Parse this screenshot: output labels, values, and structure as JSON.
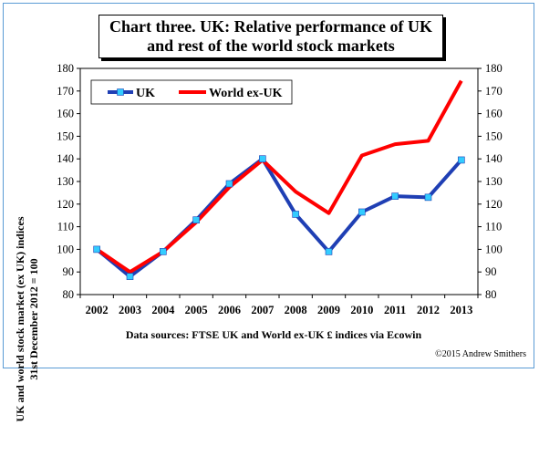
{
  "chart_data": {
    "type": "line",
    "title_line1": "Chart three. UK: Relative performance of UK",
    "title_line2": "and rest of the world stock markets",
    "ylabel_line1": "UK and world stock market (ex UK) indices",
    "ylabel_line2": "31st December 2012 = 100",
    "source": "Data sources: FTSE UK and World ex-UK £ indices via Ecowin",
    "copyright": "©2015 Andrew Smithers",
    "categories": [
      "2002",
      "2003",
      "2004",
      "2005",
      "2006",
      "2007",
      "2008",
      "2009",
      "2010",
      "2011",
      "2012",
      "2013"
    ],
    "ylim": [
      80,
      180
    ],
    "yticks": [
      80,
      90,
      100,
      110,
      120,
      130,
      140,
      150,
      160,
      170,
      180
    ],
    "legend_position": "top-left",
    "grid": false,
    "series": [
      {
        "name": "UK",
        "color": "#1f3fb4",
        "marker_color": "#33ccff",
        "values": [
          100,
          88,
          99,
          113,
          129,
          140,
          115.5,
          99,
          116.5,
          123.5,
          123,
          139.5
        ]
      },
      {
        "name": "World ex-UK",
        "color": "#ff0000",
        "values": [
          100,
          90,
          99,
          112,
          127.5,
          139.5,
          125.5,
          116,
          141.5,
          146.5,
          148,
          174.5
        ]
      }
    ]
  }
}
